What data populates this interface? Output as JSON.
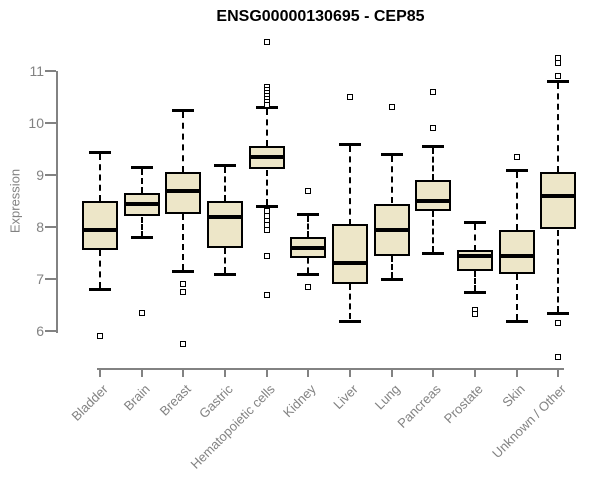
{
  "chart_data": {
    "type": "boxplot",
    "title": "ENSG00000130695 - CEP85",
    "ylabel": "Expression",
    "xlabel": "",
    "ylim": [
      5.4,
      11.6
    ],
    "yticks": [
      6,
      7,
      8,
      9,
      10,
      11
    ],
    "grid": false,
    "legend": "none",
    "box_fill_color": "#EDE6C8",
    "box_border_color": "#000000",
    "axis_color": "#828282",
    "categories": [
      "Bladder",
      "Brain",
      "Breast",
      "Gastric",
      "Hematopoietic cells",
      "Kidney",
      "Liver",
      "Lung",
      "Pancreas",
      "Prostate",
      "Skin",
      "Unknown / Other"
    ],
    "boxes": [
      {
        "name": "Bladder",
        "whisker_low": 6.8,
        "q1": 7.55,
        "median": 7.95,
        "q3": 8.5,
        "whisker_high": 9.45,
        "outliers": [
          5.9
        ]
      },
      {
        "name": "Brain",
        "whisker_low": 7.8,
        "q1": 8.2,
        "median": 8.45,
        "q3": 8.65,
        "whisker_high": 9.15,
        "outliers": [
          6.35
        ]
      },
      {
        "name": "Breast",
        "whisker_low": 7.15,
        "q1": 8.25,
        "median": 8.7,
        "q3": 9.05,
        "whisker_high": 10.25,
        "outliers": [
          6.9,
          6.75,
          5.75
        ]
      },
      {
        "name": "Gastric",
        "whisker_low": 7.1,
        "q1": 7.6,
        "median": 8.2,
        "q3": 8.5,
        "whisker_high": 9.2,
        "outliers": []
      },
      {
        "name": "Hematopoietic cells",
        "whisker_low": 8.4,
        "q1": 9.1,
        "median": 9.35,
        "q3": 9.55,
        "whisker_high": 10.3,
        "outliers": [
          11.55,
          10.7,
          10.64,
          10.58,
          10.52,
          10.46,
          10.4,
          10.34,
          8.3,
          8.21,
          8.12,
          8.03,
          7.94,
          7.45,
          6.7
        ]
      },
      {
        "name": "Kidney",
        "whisker_low": 7.1,
        "q1": 7.4,
        "median": 7.6,
        "q3": 7.8,
        "whisker_high": 8.25,
        "outliers": [
          8.7,
          6.85
        ]
      },
      {
        "name": "Liver",
        "whisker_low": 6.2,
        "q1": 6.9,
        "median": 7.3,
        "q3": 8.05,
        "whisker_high": 9.6,
        "outliers": [
          10.5
        ]
      },
      {
        "name": "Lung",
        "whisker_low": 7.0,
        "q1": 7.45,
        "median": 7.95,
        "q3": 8.45,
        "whisker_high": 9.4,
        "outliers": [
          10.3
        ]
      },
      {
        "name": "Pancreas",
        "whisker_low": 7.5,
        "q1": 8.3,
        "median": 8.5,
        "q3": 8.9,
        "whisker_high": 9.55,
        "outliers": [
          10.6,
          9.9
        ]
      },
      {
        "name": "Prostate",
        "whisker_low": 6.75,
        "q1": 7.15,
        "median": 7.45,
        "q3": 7.55,
        "whisker_high": 8.1,
        "outliers": [
          6.4,
          6.33
        ]
      },
      {
        "name": "Skin",
        "whisker_low": 6.2,
        "q1": 7.1,
        "median": 7.45,
        "q3": 7.95,
        "whisker_high": 9.1,
        "outliers": [
          9.35
        ]
      },
      {
        "name": "Unknown / Other",
        "whisker_low": 6.35,
        "q1": 7.95,
        "median": 8.6,
        "q3": 9.05,
        "whisker_high": 10.8,
        "outliers": [
          11.25,
          11.15,
          10.9,
          6.15,
          5.5
        ]
      }
    ]
  }
}
